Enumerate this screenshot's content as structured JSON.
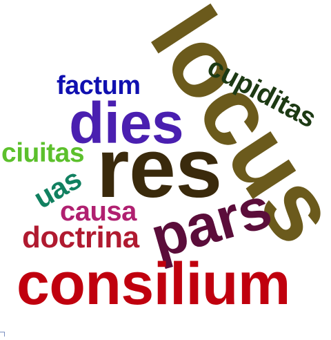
{
  "words": [
    {
      "key": "locus",
      "text": "locus",
      "color": "#6b5a1c"
    },
    {
      "key": "res",
      "text": "res",
      "color": "#3a2a0c"
    },
    {
      "key": "consilium",
      "text": "consilium",
      "color": "#c0000e"
    },
    {
      "key": "dies",
      "text": "dies",
      "color": "#4a1fb0"
    },
    {
      "key": "pars",
      "text": "pars",
      "color": "#5b0d3a"
    },
    {
      "key": "cupiditas",
      "text": "cupiditas",
      "color": "#1d3a14"
    },
    {
      "key": "factum",
      "text": "factum",
      "color": "#1010b0"
    },
    {
      "key": "ciuitas",
      "text": "ciuitas",
      "color": "#5cc02c"
    },
    {
      "key": "uas",
      "text": "uas",
      "color": "#118060"
    },
    {
      "key": "causa",
      "text": "causa",
      "color": "#b02070"
    },
    {
      "key": "doctrina",
      "text": "doctrina",
      "color": "#b01a30"
    }
  ]
}
